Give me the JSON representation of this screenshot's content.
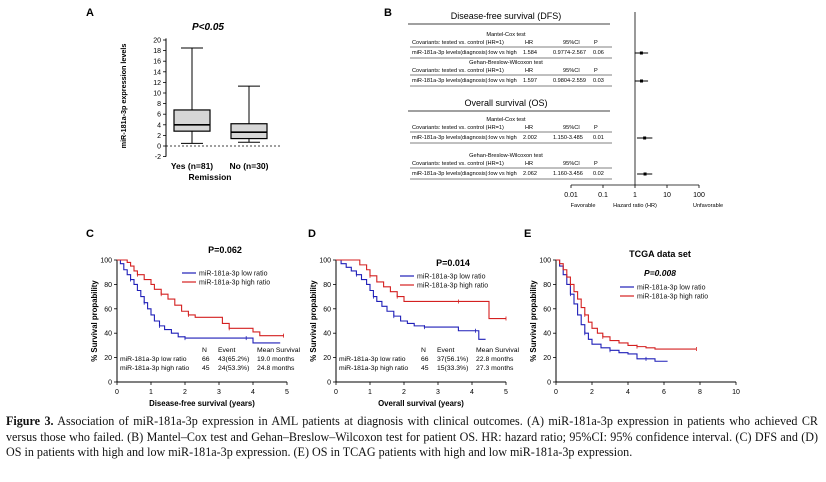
{
  "panel_labels": {
    "a": "A",
    "b": "B",
    "c": "C",
    "d": "D",
    "e": "E"
  },
  "panel_a": {
    "pvalue": "P<0.05",
    "ylabel": "miR-181a-3p expression levels",
    "xlabel": "Remission",
    "yticks": [
      "20",
      "18",
      "16",
      "14",
      "12",
      "10",
      "8",
      "6",
      "4",
      "2",
      "0",
      "-2"
    ],
    "groups": [
      {
        "label": "Yes (n=81)",
        "whisker_low": 0.5,
        "q1": 2.8,
        "median": 4.0,
        "q3": 6.8,
        "whisker_high": 18.5
      },
      {
        "label": "No (n=30)",
        "whisker_low": 0.7,
        "q1": 1.4,
        "median": 2.6,
        "q3": 4.2,
        "whisker_high": 11.3
      }
    ]
  },
  "panel_b": {
    "dfs_title": "Disease-free survival (DFS)",
    "os_title": "Overall survival (OS)",
    "col_hr": "HR",
    "col_ci": "95%CI",
    "col_p": "P",
    "blocks": [
      {
        "test": "Mantel-Cox test",
        "cov_label": "Covariants: tested vs. control (HR=1)",
        "row_label": "miR-181a-3p levels(diagnosis):low vs high",
        "hr": "1.584",
        "ci": "0.9774-2.567",
        "p": "0.06",
        "hr_value": 1.584,
        "ci_low": 0.9774,
        "ci_high": 2.567
      },
      {
        "test": "Gehan-Breslow-Wilcoxon test",
        "cov_label": "Covariants: tested vs. control (HR=1)",
        "row_label": "miR-181a-3p levels(diagnosis):low vs high",
        "hr": "1.597",
        "ci": "0.9804-2.559",
        "p": "0.03",
        "hr_value": 1.597,
        "ci_low": 0.9804,
        "ci_high": 2.559
      },
      {
        "test": "Mantel-Cox test",
        "cov_label": "Covariants: tested vs. control (HR=1)",
        "row_label": "miR-181a-3p levels(diagnosis):low vs high",
        "hr": "2.002",
        "ci": "1.150-3.485",
        "p": "0.01",
        "hr_value": 2.002,
        "ci_low": 1.15,
        "ci_high": 3.485
      },
      {
        "test": "Gehan-Breslow-Wilcoxon test",
        "cov_label": "Covariants: tested vs. control (HR=1)",
        "row_label": "miR-181a-3p levels(diagnosis):low vs high",
        "hr": "2.062",
        "ci": "1.160-3.456",
        "p": "0.02",
        "hr_value": 2.062,
        "ci_low": 1.16,
        "ci_high": 3.456
      }
    ],
    "forest_ticks": [
      "0.01",
      "0.1",
      "1",
      "10",
      "100"
    ],
    "forest_tick_values": [
      0.01,
      0.1,
      1,
      10,
      100
    ],
    "favorable": "Favorable",
    "hr_axis": "Hazard ratio (HR)",
    "unfavorable": "Unfavorable"
  },
  "chart_data": [
    {
      "panel": "C",
      "type": "line",
      "title": "P=0.062",
      "xlabel": "Disease-free survival (years)",
      "ylabel": "% Survival propability",
      "xlim": [
        0,
        5
      ],
      "ylim": [
        0,
        100
      ],
      "xticks": [
        "0",
        "1",
        "2",
        "3",
        "4",
        "5"
      ],
      "yticks": [
        "0",
        "20",
        "40",
        "60",
        "80",
        "100"
      ],
      "legend": [
        "miR-181a-3p low ratio",
        "miR-181a-3p high ratio"
      ],
      "series": [
        {
          "name": "miR-181a-3p low ratio",
          "color": "#1f1fb8",
          "points": [
            [
              0,
              100
            ],
            [
              0.1,
              97
            ],
            [
              0.2,
              92
            ],
            [
              0.3,
              88
            ],
            [
              0.4,
              84
            ],
            [
              0.5,
              80
            ],
            [
              0.6,
              75
            ],
            [
              0.7,
              70
            ],
            [
              0.8,
              65
            ],
            [
              0.9,
              60
            ],
            [
              1.0,
              55
            ],
            [
              1.1,
              50
            ],
            [
              1.25,
              46
            ],
            [
              1.4,
              43
            ],
            [
              1.6,
              40
            ],
            [
              1.8,
              37
            ],
            [
              2.0,
              36
            ],
            [
              2.4,
              36
            ],
            [
              2.8,
              36
            ],
            [
              3.3,
              36
            ],
            [
              3.8,
              36
            ],
            [
              4.0,
              32
            ],
            [
              4.8,
              32
            ]
          ]
        },
        {
          "name": "miR-181a-3p high ratio",
          "color": "#d42020",
          "points": [
            [
              0,
              100
            ],
            [
              0.3,
              98
            ],
            [
              0.4,
              95
            ],
            [
              0.5,
              91
            ],
            [
              0.6,
              88
            ],
            [
              0.8,
              84
            ],
            [
              1.0,
              80
            ],
            [
              1.1,
              76
            ],
            [
              1.3,
              72
            ],
            [
              1.5,
              68
            ],
            [
              1.7,
              63
            ],
            [
              1.9,
              58
            ],
            [
              2.1,
              55
            ],
            [
              2.3,
              53
            ],
            [
              2.8,
              53
            ],
            [
              3.1,
              48
            ],
            [
              3.3,
              44
            ],
            [
              3.6,
              44
            ],
            [
              4.0,
              41
            ],
            [
              4.2,
              38
            ],
            [
              4.9,
              38
            ]
          ]
        }
      ],
      "table": {
        "headers": [
          "",
          "N",
          "Event",
          "Mean Survival"
        ],
        "rows": [
          [
            "miR-181a-3p  low ratio",
            "66",
            "43(65.2%)",
            "19.0 months"
          ],
          [
            "miR-181a-3p  high ratio",
            "45",
            "24(53.3%)",
            "24.8 months"
          ]
        ]
      }
    },
    {
      "panel": "D",
      "type": "line",
      "title": "P=0.014",
      "xlabel": "Overall survival (years)",
      "ylabel": "% Survival propability",
      "xlim": [
        0,
        5
      ],
      "ylim": [
        0,
        100
      ],
      "xticks": [
        "0",
        "1",
        "2",
        "3",
        "4",
        "5"
      ],
      "yticks": [
        "0",
        "20",
        "40",
        "60",
        "80",
        "100"
      ],
      "legend": [
        "miR-181a-3p low ratio",
        "miR-181a-3p high ratio"
      ],
      "series": [
        {
          "name": "miR-181a-3p low ratio",
          "color": "#1f1fb8",
          "points": [
            [
              0,
              100
            ],
            [
              0.15,
              97
            ],
            [
              0.3,
              94
            ],
            [
              0.45,
              91
            ],
            [
              0.6,
              88
            ],
            [
              0.75,
              84
            ],
            [
              0.9,
              80
            ],
            [
              1.0,
              75
            ],
            [
              1.1,
              70
            ],
            [
              1.2,
              66
            ],
            [
              1.35,
              62
            ],
            [
              1.5,
              58
            ],
            [
              1.7,
              54
            ],
            [
              1.9,
              50
            ],
            [
              2.1,
              48
            ],
            [
              2.3,
              46
            ],
            [
              2.6,
              45
            ],
            [
              3.0,
              45
            ],
            [
              3.5,
              45
            ],
            [
              3.6,
              42
            ],
            [
              4.1,
              42
            ],
            [
              4.2,
              35
            ],
            [
              4.4,
              35
            ]
          ]
        },
        {
          "name": "miR-181a-3p high ratio",
          "color": "#d42020",
          "points": [
            [
              0,
              100
            ],
            [
              0.5,
              100
            ],
            [
              0.7,
              96
            ],
            [
              0.9,
              92
            ],
            [
              1.0,
              87
            ],
            [
              1.2,
              82
            ],
            [
              1.4,
              78
            ],
            [
              1.6,
              74
            ],
            [
              1.8,
              70
            ],
            [
              2.0,
              66
            ],
            [
              2.8,
              66
            ],
            [
              3.2,
              66
            ],
            [
              3.6,
              66
            ],
            [
              4.0,
              66
            ],
            [
              4.4,
              66
            ],
            [
              4.5,
              52
            ],
            [
              5.0,
              52
            ]
          ]
        }
      ],
      "table": {
        "headers": [
          "",
          "N",
          "Event",
          "Mean Survival"
        ],
        "rows": [
          [
            "miR-181a-3p  low ratio",
            "66",
            "37(56.1%)",
            "22.8 months"
          ],
          [
            "miR-181a-3p  high ratio",
            "45",
            "15(33.3%)",
            "27.3 months"
          ]
        ]
      }
    },
    {
      "panel": "E",
      "type": "line",
      "title": "TCGA data set",
      "pvalue": "P=0.008",
      "xlabel": "",
      "ylabel": "% Survival propability",
      "xlim": [
        0,
        10
      ],
      "ylim": [
        0,
        100
      ],
      "xticks": [
        "0",
        "2",
        "4",
        "6",
        "8",
        "10"
      ],
      "yticks": [
        "0",
        "20",
        "40",
        "60",
        "80",
        "100"
      ],
      "legend": [
        "miR-181a-3p low ratio",
        "miR-181a-3p high ratio"
      ],
      "series": [
        {
          "name": "miR-181a-3p low ratio",
          "color": "#1f1fb8",
          "points": [
            [
              0,
              100
            ],
            [
              0.2,
              95
            ],
            [
              0.4,
              88
            ],
            [
              0.6,
              80
            ],
            [
              0.8,
              72
            ],
            [
              1.0,
              64
            ],
            [
              1.2,
              55
            ],
            [
              1.4,
              47
            ],
            [
              1.6,
              40
            ],
            [
              1.8,
              35
            ],
            [
              2.0,
              31
            ],
            [
              2.5,
              28
            ],
            [
              3.0,
              26
            ],
            [
              3.5,
              24
            ],
            [
              4.0,
              23
            ],
            [
              4.5,
              19
            ],
            [
              5.0,
              19
            ],
            [
              5.5,
              17
            ],
            [
              6.2,
              17
            ]
          ]
        },
        {
          "name": "miR-181a-3p high ratio",
          "color": "#d42020",
          "points": [
            [
              0,
              100
            ],
            [
              0.2,
              97
            ],
            [
              0.4,
              92
            ],
            [
              0.6,
              86
            ],
            [
              0.8,
              80
            ],
            [
              1.0,
              74
            ],
            [
              1.2,
              68
            ],
            [
              1.4,
              61
            ],
            [
              1.6,
              55
            ],
            [
              1.8,
              49
            ],
            [
              2.0,
              44
            ],
            [
              2.3,
              40
            ],
            [
              2.6,
              37
            ],
            [
              3.0,
              34
            ],
            [
              3.5,
              32
            ],
            [
              4.0,
              30
            ],
            [
              4.5,
              29
            ],
            [
              5.0,
              28
            ],
            [
              5.5,
              27
            ],
            [
              6.5,
              27
            ],
            [
              7.8,
              27
            ]
          ]
        }
      ]
    }
  ],
  "caption": {
    "fig_label": "Figure 3.",
    "text": " Association of miR-181a-3p expression in AML patients at diagnosis with clinical outcomes. (A) miR-181a-3p expression in patients who achieved CR versus those who failed. (B) Mantel–Cox test and Gehan–Breslow–Wilcoxon test for patient OS. HR: hazard ratio; 95%CI: 95% confidence interval. (C) DFS and (D) OS in patients with high and low miR-181a-3p expression. (E) OS in TCAG patients with high and low miR-181a-3p expression."
  }
}
